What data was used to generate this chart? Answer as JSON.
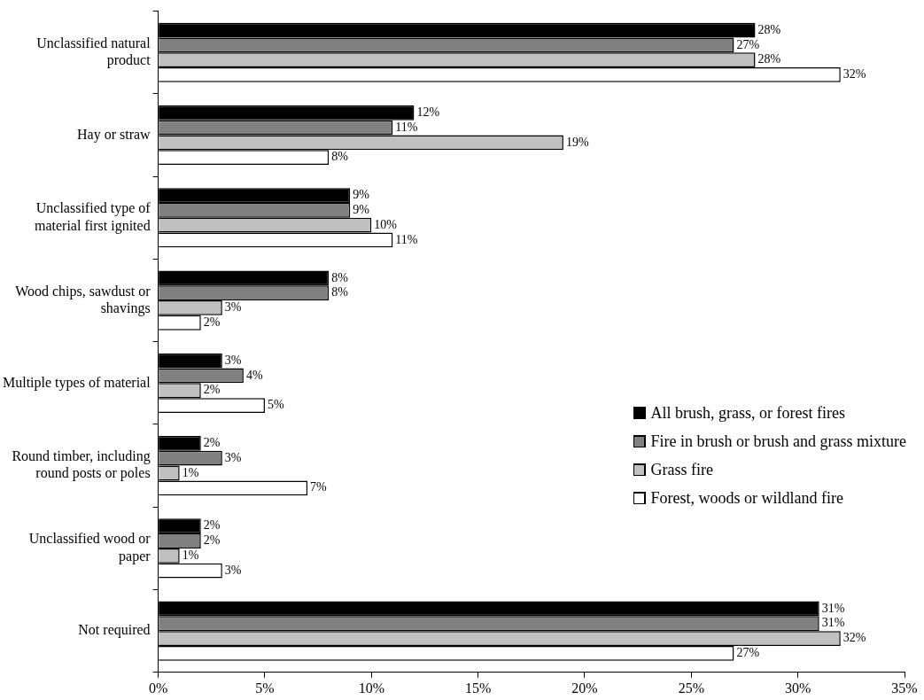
{
  "chart_data": {
    "type": "bar",
    "orientation": "horizontal",
    "categories": [
      "Unclassified natural\nproduct",
      "Hay or straw",
      "Unclassified type of\nmaterial first ignited",
      "Wood chips, sawdust or\nshavings",
      "Multiple types of material",
      "Round timber, including\nround posts or poles",
      "Unclassified wood or\npaper",
      "Not required"
    ],
    "series": [
      {
        "name": "All brush, grass, or forest fires",
        "color": "#000000",
        "values": [
          28,
          12,
          9,
          8,
          3,
          2,
          2,
          31
        ],
        "value_labels": [
          "28%",
          "12%",
          "9%",
          "8%",
          "3%",
          "2%",
          "2%",
          "31%"
        ]
      },
      {
        "name": "Fire in brush or brush and grass mixture",
        "color": "#808080",
        "values": [
          27,
          11,
          9,
          8,
          4,
          3,
          2,
          31
        ],
        "value_labels": [
          "27%",
          "11%",
          "9%",
          "8%",
          "4%",
          "3%",
          "2%",
          "31%"
        ]
      },
      {
        "name": "Grass fire",
        "color": "#c0c0c0",
        "values": [
          28,
          19,
          10,
          3,
          2,
          1,
          1,
          32
        ],
        "value_labels": [
          "28%",
          "19%",
          "10%",
          "3%",
          "2%",
          "1%",
          "1%",
          "32%"
        ]
      },
      {
        "name": "Forest, woods or wildland fire",
        "color": "#ffffff",
        "values": [
          32,
          8,
          11,
          2,
          5,
          7,
          3,
          27
        ],
        "value_labels": [
          "32%",
          "8%",
          "11%",
          "2%",
          "5%",
          "7%",
          "3%",
          "27%"
        ]
      }
    ],
    "xlim": [
      0,
      35
    ],
    "xticks": [
      {
        "value": 0,
        "label": "0%"
      },
      {
        "value": 5,
        "label": "5%"
      },
      {
        "value": 10,
        "label": "10%"
      },
      {
        "value": 15,
        "label": "15%"
      },
      {
        "value": 20,
        "label": "20%"
      },
      {
        "value": 25,
        "label": "25%"
      },
      {
        "value": 30,
        "label": "30%"
      },
      {
        "value": 35,
        "label": "35%"
      }
    ],
    "grid": false,
    "legend": "right"
  }
}
